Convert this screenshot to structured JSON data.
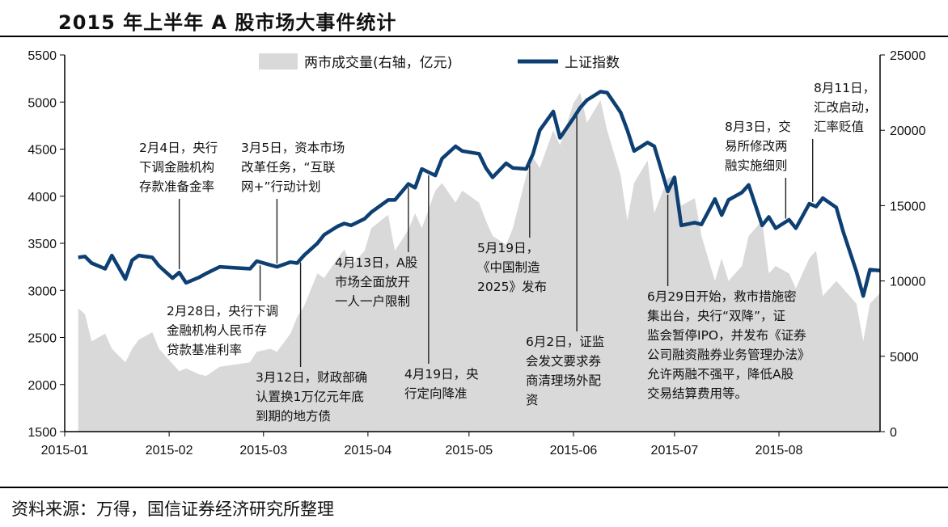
{
  "title": "2015 年上半年 A 股市场大事件统计",
  "source": "资料来源：万得，国信证券经济研究所整理",
  "colors": {
    "index_line": "#0d3f73",
    "volume_area": "#d9d9d9",
    "annotation_line": "#222222"
  },
  "chart_data": {
    "type": "line",
    "title": "2015 年上半年 A 股市场大事件统计",
    "xlabel": "",
    "ylabel": "",
    "legend_position": "top",
    "x_ticks": [
      "2015-01",
      "2015-02",
      "2015-03",
      "2015-04",
      "2015-05",
      "2015-06",
      "2015-07",
      "2015-08"
    ],
    "ylim_left": [
      1500,
      5500
    ],
    "yticks_left": [
      1500,
      2000,
      2500,
      3000,
      3500,
      4000,
      4500,
      5000,
      5500
    ],
    "ylim_right": [
      0,
      25000
    ],
    "yticks_right": [
      0,
      5000,
      10000,
      15000,
      20000,
      25000
    ],
    "series": [
      {
        "name": "两市成交量(右轴，亿元)",
        "type": "area",
        "axis": "right",
        "x": [
          "2015-01-05",
          "2015-01-07",
          "2015-01-09",
          "2015-01-13",
          "2015-01-15",
          "2015-01-19",
          "2015-01-21",
          "2015-01-23",
          "2015-01-27",
          "2015-01-29",
          "2015-02-02",
          "2015-02-04",
          "2015-02-06",
          "2015-02-10",
          "2015-02-12",
          "2015-02-16",
          "2015-02-25",
          "2015-02-27",
          "2015-03-03",
          "2015-03-05",
          "2015-03-09",
          "2015-03-11",
          "2015-03-13",
          "2015-03-17",
          "2015-03-19",
          "2015-03-23",
          "2015-03-25",
          "2015-03-27",
          "2015-03-31",
          "2015-04-02",
          "2015-04-07",
          "2015-04-09",
          "2015-04-13",
          "2015-04-15",
          "2015-04-17",
          "2015-04-21",
          "2015-04-23",
          "2015-04-27",
          "2015-04-29",
          "2015-05-04",
          "2015-05-06",
          "2015-05-08",
          "2015-05-12",
          "2015-05-14",
          "2015-05-18",
          "2015-05-20",
          "2015-05-22",
          "2015-05-26",
          "2015-05-28",
          "2015-06-01",
          "2015-06-03",
          "2015-06-05",
          "2015-06-09",
          "2015-06-11",
          "2015-06-15",
          "2015-06-17",
          "2015-06-19",
          "2015-06-23",
          "2015-06-25",
          "2015-06-29",
          "2015-07-01",
          "2015-07-03",
          "2015-07-07",
          "2015-07-09",
          "2015-07-13",
          "2015-07-15",
          "2015-07-17",
          "2015-07-21",
          "2015-07-23",
          "2015-07-27",
          "2015-07-29",
          "2015-07-31",
          "2015-08-04",
          "2015-08-06",
          "2015-08-10",
          "2015-08-12",
          "2015-08-14",
          "2015-08-18",
          "2015-08-20",
          "2015-08-24",
          "2015-08-26",
          "2015-08-28",
          "2015-08-31"
        ],
        "values": [
          8200,
          7800,
          6000,
          6500,
          5500,
          4600,
          5500,
          6100,
          6600,
          5500,
          4500,
          4000,
          4200,
          3800,
          3700,
          4300,
          4600,
          5300,
          5500,
          5300,
          6500,
          7600,
          8300,
          10500,
          10200,
          11500,
          12100,
          11000,
          12000,
          13500,
          14400,
          12000,
          13400,
          14500,
          13500,
          16000,
          16500,
          15200,
          16000,
          15200,
          14000,
          13000,
          12400,
          13500,
          17000,
          18200,
          17500,
          20000,
          19000,
          21800,
          22500,
          20500,
          22000,
          20000,
          17000,
          14000,
          16500,
          18000,
          14500,
          16800,
          17000,
          15000,
          15500,
          13000,
          10000,
          11500,
          10000,
          11000,
          13000,
          14000,
          10500,
          11000,
          10500,
          9500,
          11500,
          12000,
          9000,
          10000,
          9500,
          8500,
          6000,
          8500,
          9200
        ]
      },
      {
        "name": "上证指数",
        "type": "line",
        "axis": "left",
        "x": [
          "2015-01-05",
          "2015-01-07",
          "2015-01-09",
          "2015-01-13",
          "2015-01-15",
          "2015-01-19",
          "2015-01-21",
          "2015-01-23",
          "2015-01-27",
          "2015-01-29",
          "2015-02-02",
          "2015-02-04",
          "2015-02-06",
          "2015-02-10",
          "2015-02-12",
          "2015-02-16",
          "2015-02-25",
          "2015-02-27",
          "2015-03-03",
          "2015-03-05",
          "2015-03-09",
          "2015-03-11",
          "2015-03-13",
          "2015-03-17",
          "2015-03-19",
          "2015-03-23",
          "2015-03-25",
          "2015-03-27",
          "2015-03-31",
          "2015-04-02",
          "2015-04-07",
          "2015-04-09",
          "2015-04-13",
          "2015-04-15",
          "2015-04-17",
          "2015-04-21",
          "2015-04-23",
          "2015-04-27",
          "2015-04-29",
          "2015-05-04",
          "2015-05-06",
          "2015-05-08",
          "2015-05-12",
          "2015-05-14",
          "2015-05-18",
          "2015-05-20",
          "2015-05-22",
          "2015-05-26",
          "2015-05-28",
          "2015-06-01",
          "2015-06-03",
          "2015-06-05",
          "2015-06-09",
          "2015-06-11",
          "2015-06-15",
          "2015-06-17",
          "2015-06-19",
          "2015-06-23",
          "2015-06-25",
          "2015-06-29",
          "2015-07-01",
          "2015-07-03",
          "2015-07-07",
          "2015-07-09",
          "2015-07-13",
          "2015-07-15",
          "2015-07-17",
          "2015-07-21",
          "2015-07-23",
          "2015-07-27",
          "2015-07-29",
          "2015-07-31",
          "2015-08-04",
          "2015-08-06",
          "2015-08-10",
          "2015-08-12",
          "2015-08-14",
          "2015-08-18",
          "2015-08-20",
          "2015-08-24",
          "2015-08-26",
          "2015-08-28",
          "2015-08-31"
        ],
        "values": [
          3350,
          3360,
          3290,
          3230,
          3370,
          3120,
          3320,
          3370,
          3350,
          3260,
          3130,
          3190,
          3080,
          3140,
          3180,
          3250,
          3230,
          3310,
          3270,
          3250,
          3300,
          3290,
          3370,
          3500,
          3590,
          3680,
          3710,
          3690,
          3760,
          3830,
          3960,
          3960,
          4130,
          4090,
          4290,
          4220,
          4400,
          4530,
          4480,
          4450,
          4300,
          4200,
          4350,
          4300,
          4290,
          4450,
          4700,
          4900,
          4620,
          4830,
          4940,
          5020,
          5110,
          5100,
          4890,
          4700,
          4480,
          4570,
          4530,
          4050,
          4200,
          3690,
          3720,
          3700,
          3970,
          3800,
          3960,
          4040,
          4120,
          3690,
          3780,
          3660,
          3750,
          3660,
          3920,
          3890,
          3980,
          3880,
          3630,
          3200,
          2940,
          3220,
          3210
        ]
      }
    ],
    "annotations": [
      {
        "date": "2015-02-04",
        "value": 3190,
        "text": [
          "2月4日，央行",
          "下调金融机构",
          "存款准备金率"
        ]
      },
      {
        "date": "2015-02-28",
        "value": 3310,
        "text": [
          "2月28日，央行下调",
          "金融机构人民币存",
          "贷款基准利率"
        ]
      },
      {
        "date": "2015-03-05",
        "value": 3250,
        "text": [
          "3月5日，资本市场",
          "改革任务，“互联",
          "网+”行动计划"
        ]
      },
      {
        "date": "2015-03-12",
        "value": 3290,
        "text": [
          "3月12日，财政部确",
          "认置换1万亿元年底",
          "到期的地方债"
        ]
      },
      {
        "date": "2015-04-13",
        "value": 4130,
        "text": [
          "4月13日，A股",
          "市场全面放开",
          "一人一户限制"
        ]
      },
      {
        "date": "2015-04-19",
        "value": 4250,
        "text": [
          "4月19日，央",
          "行定向降准"
        ]
      },
      {
        "date": "2015-05-19",
        "value": 4370,
        "text": [
          "5月19日，",
          "《中国制造",
          "2025》发布"
        ]
      },
      {
        "date": "2015-06-02",
        "value": 4900,
        "text": [
          "6月2日，证监",
          "会发文要求券",
          "商清理场外配",
          "资"
        ]
      },
      {
        "date": "2015-06-29",
        "value": 4050,
        "text": [
          "6月29日开始，救市措施密",
          "集出台，央行“双降”，证",
          "监会暂停IPO，并发布《证券",
          "公司融资融券业务管理办法》",
          "允许两融不强平，降低A股",
          "交易结算费用等。"
        ]
      },
      {
        "date": "2015-08-03",
        "value": 3700,
        "text": [
          "8月3日，交",
          "易所修改两",
          "融实施细则"
        ]
      },
      {
        "date": "2015-08-11",
        "value": 3930,
        "text": [
          "8月11日，",
          "汇改启动，",
          "汇率贬值"
        ]
      }
    ]
  }
}
